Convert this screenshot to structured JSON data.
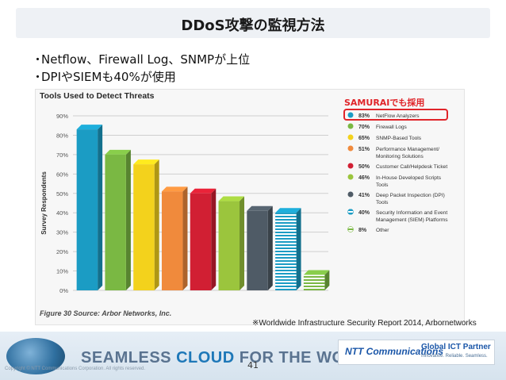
{
  "slide": {
    "title": "DDoS攻撃の監視方法",
    "bullets": [
      "Netflow、Firewall Log、SNMPが上位",
      "DPIやSIEMも40%が使用"
    ],
    "bullet_marker": "・",
    "samurai_callout": "SAMURAIでも採用",
    "source_note": "※Worldwide Infrastructure Security Report 2014, Arbornetworks",
    "page_number": "41",
    "copyright": "Copyright © NTT Communications Corporation. All rights reserved.",
    "banner": {
      "part1": "SEAMLESS ",
      "part2": "CLOUD",
      "part3": " FOR THE WORLD"
    },
    "partner": {
      "logo": "NTT Communications",
      "title": "Global ICT Partner",
      "tagline": "Innovative. Reliable. Seamless."
    },
    "colors": {
      "callout": "#e0252a",
      "banner_accent": "#1e78b8"
    }
  },
  "chart_data": {
    "type": "bar",
    "title": "Tools Used to Detect Threats",
    "ylabel": "Survey Respondents",
    "caption": "Figure 30 Source: Arbor Networks, Inc.",
    "ylim": [
      0,
      90
    ],
    "yticks": [
      "0%",
      "10%",
      "20%",
      "30%",
      "40%",
      "50%",
      "60%",
      "70%",
      "80%",
      "90%"
    ],
    "legend_position": "right",
    "series": [
      {
        "name": "NetFlow Analyzers",
        "value": 83,
        "label": "83%",
        "color": "#1b9cc4"
      },
      {
        "name": "Firewall Logs",
        "value": 70,
        "label": "70%",
        "color": "#7ab843"
      },
      {
        "name": "SNMP-Based Tools",
        "value": 65,
        "label": "65%",
        "color": "#f3d21c"
      },
      {
        "name": "Performance Management/ Monitoring Solutions",
        "value": 51,
        "label": "51%",
        "color": "#f08a3c"
      },
      {
        "name": "Customer Call/Helpdesk Ticket",
        "value": 50,
        "label": "50%",
        "color": "#d11f33"
      },
      {
        "name": "In-House Developed Scripts Tools",
        "value": 46,
        "label": "46%",
        "color": "#9bc53d"
      },
      {
        "name": "Deep Packet Inspection (DPI) Tools",
        "value": 41,
        "label": "41%",
        "color": "#4f5b66"
      },
      {
        "name": "Security Information and Event Management (SIEM) Platforms",
        "value": 40,
        "label": "40%",
        "color": "#1b9cc4",
        "striped": true
      },
      {
        "name": "Other",
        "value": 8,
        "label": "8%",
        "color": "#7ab843",
        "striped": true
      }
    ]
  }
}
